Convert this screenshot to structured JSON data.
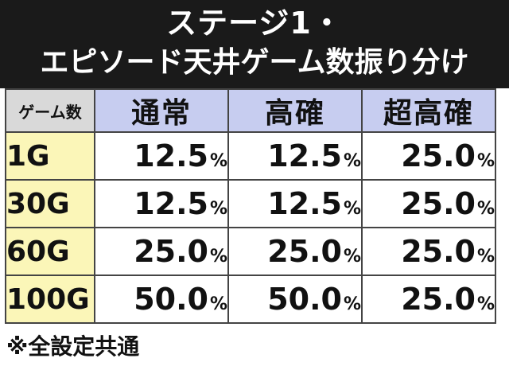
{
  "title": {
    "line1": "ステージ1・",
    "line2": "エピソード天井ゲーム数振り分け"
  },
  "table": {
    "corner_label": "ゲーム数",
    "columns": [
      "通常",
      "高確",
      "超高確"
    ],
    "percent_sign": "%",
    "rows": [
      {
        "label": "1G",
        "values": [
          "12.5",
          "12.5",
          "25.0"
        ]
      },
      {
        "label": "30G",
        "values": [
          "12.5",
          "12.5",
          "25.0"
        ]
      },
      {
        "label": "60G",
        "values": [
          "25.0",
          "25.0",
          "25.0"
        ]
      },
      {
        "label": "100G",
        "values": [
          "50.0",
          "50.0",
          "25.0"
        ]
      }
    ]
  },
  "footnote": "※全設定共通",
  "colors": {
    "title_background": "#1a1a1a",
    "corner_background": "#d9d9d9",
    "column_header_background": "#c7cdf0",
    "row_header_background": "#fbf6b8"
  }
}
